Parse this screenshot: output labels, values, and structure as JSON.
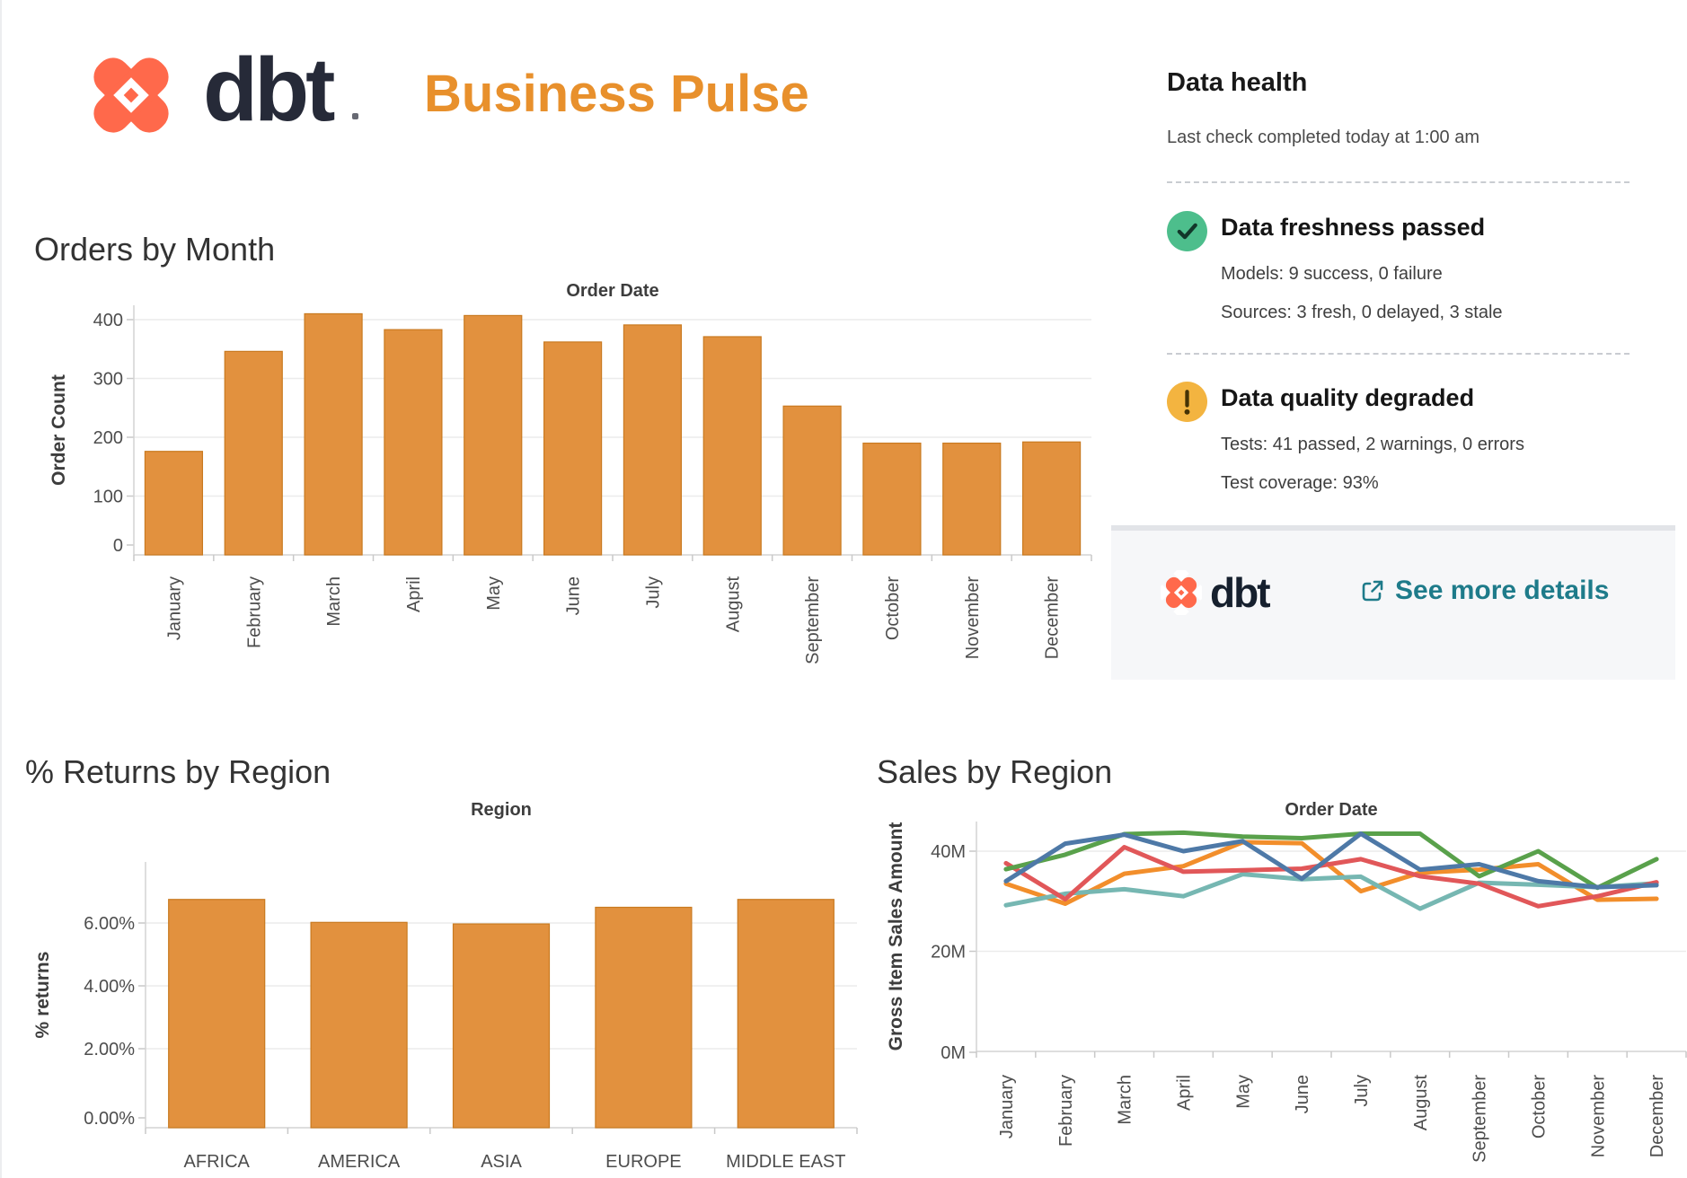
{
  "header": {
    "brand": "dbt",
    "title": "Business Pulse"
  },
  "colors": {
    "brand_coral": "#FF694B",
    "brand_navy": "#262A38",
    "accent_orange": "#E8902C",
    "bar_fill": "#E2913E",
    "bar_border": "#C97A20",
    "link_teal": "#1E7B8A",
    "ok_green": "#4DBE8C",
    "warn_amber": "#F3B440",
    "series_blue": "#4E79A7",
    "series_orange": "#F28E2B",
    "series_red": "#E15759",
    "series_teal": "#76B7B2",
    "series_green": "#59A14B"
  },
  "data_health": {
    "title": "Data health",
    "last_check": "Last check completed today at 1:00 am",
    "freshness": {
      "heading": "Data freshness passed",
      "models": "Models: 9 success, 0 failure",
      "sources": "Sources: 3 fresh, 0 delayed, 3 stale"
    },
    "quality": {
      "heading": "Data quality degraded",
      "tests": "Tests: 41 passed, 2 warnings, 0 errors",
      "coverage": "Test coverage: 93%"
    },
    "footer": {
      "brand": "dbt",
      "link_label": "See more details"
    }
  },
  "chart_data": [
    {
      "type": "bar",
      "title": "Orders by Month",
      "x_axis_title": "Order Date",
      "ylabel": "Order Count",
      "categories": [
        "January",
        "February",
        "March",
        "April",
        "May",
        "June",
        "July",
        "August",
        "September",
        "October",
        "November",
        "December"
      ],
      "values": [
        176,
        346,
        410,
        383,
        407,
        362,
        391,
        371,
        253,
        190,
        190,
        192
      ],
      "yticks": [
        0,
        100,
        200,
        300,
        400
      ],
      "ytick_labels": [
        "0",
        "100",
        "200",
        "300",
        "400"
      ],
      "ylim": [
        0,
        430
      ],
      "grid": true,
      "legend": "none",
      "rotated_category_labels": true
    },
    {
      "type": "bar",
      "title": "% Returns by Region",
      "x_axis_title": "Region",
      "ylabel": "% returns",
      "categories": [
        "AFRICA",
        "AMERICA",
        "ASIA",
        "EUROPE",
        "MIDDLE EAST"
      ],
      "values": [
        6.75,
        6.02,
        5.97,
        6.5,
        6.75
      ],
      "yticks": [
        0,
        2,
        4,
        6
      ],
      "ytick_labels": [
        "0.00%",
        "2.00%",
        "4.00%",
        "6.00%"
      ],
      "ylim": [
        0,
        7.9
      ],
      "grid": true,
      "legend": "none",
      "rotated_category_labels": false
    },
    {
      "type": "line",
      "title": "Sales by Region",
      "x_axis_title": "Order Date",
      "ylabel": "Gross Item Sales Amount",
      "x": [
        "January",
        "February",
        "March",
        "April",
        "May",
        "June",
        "July",
        "August",
        "September",
        "October",
        "November",
        "December"
      ],
      "yticks": [
        0,
        20,
        40
      ],
      "ytick_labels": [
        "0M",
        "20M",
        "40M"
      ],
      "ylim": [
        0,
        46
      ],
      "unit": "M",
      "grid": true,
      "legend": "none",
      "series": [
        {
          "name": "orange",
          "color": "#F28E2B",
          "values": [
            33.5,
            29.5,
            35.5,
            37.0,
            41.8,
            41.6,
            32.0,
            35.7,
            36.3,
            37.4,
            30.3,
            30.5
          ]
        },
        {
          "name": "teal",
          "color": "#76B7B2",
          "values": [
            29.2,
            31.5,
            32.4,
            31.0,
            35.4,
            34.4,
            34.9,
            28.5,
            33.7,
            33.3,
            32.8,
            33.6
          ]
        },
        {
          "name": "red",
          "color": "#E15759",
          "values": [
            37.6,
            30.4,
            40.8,
            35.9,
            36.2,
            36.5,
            38.4,
            35.0,
            33.5,
            29.0,
            31.0,
            33.8
          ]
        },
        {
          "name": "green",
          "color": "#59A14B",
          "values": [
            36.4,
            39.3,
            43.4,
            43.7,
            42.9,
            42.6,
            43.5,
            43.5,
            35.0,
            40.0,
            32.7,
            38.4
          ]
        },
        {
          "name": "blue",
          "color": "#4E79A7",
          "values": [
            34.0,
            41.5,
            43.3,
            40.0,
            42.0,
            34.5,
            43.5,
            36.3,
            37.4,
            34.0,
            32.8,
            33.2
          ]
        }
      ]
    }
  ]
}
